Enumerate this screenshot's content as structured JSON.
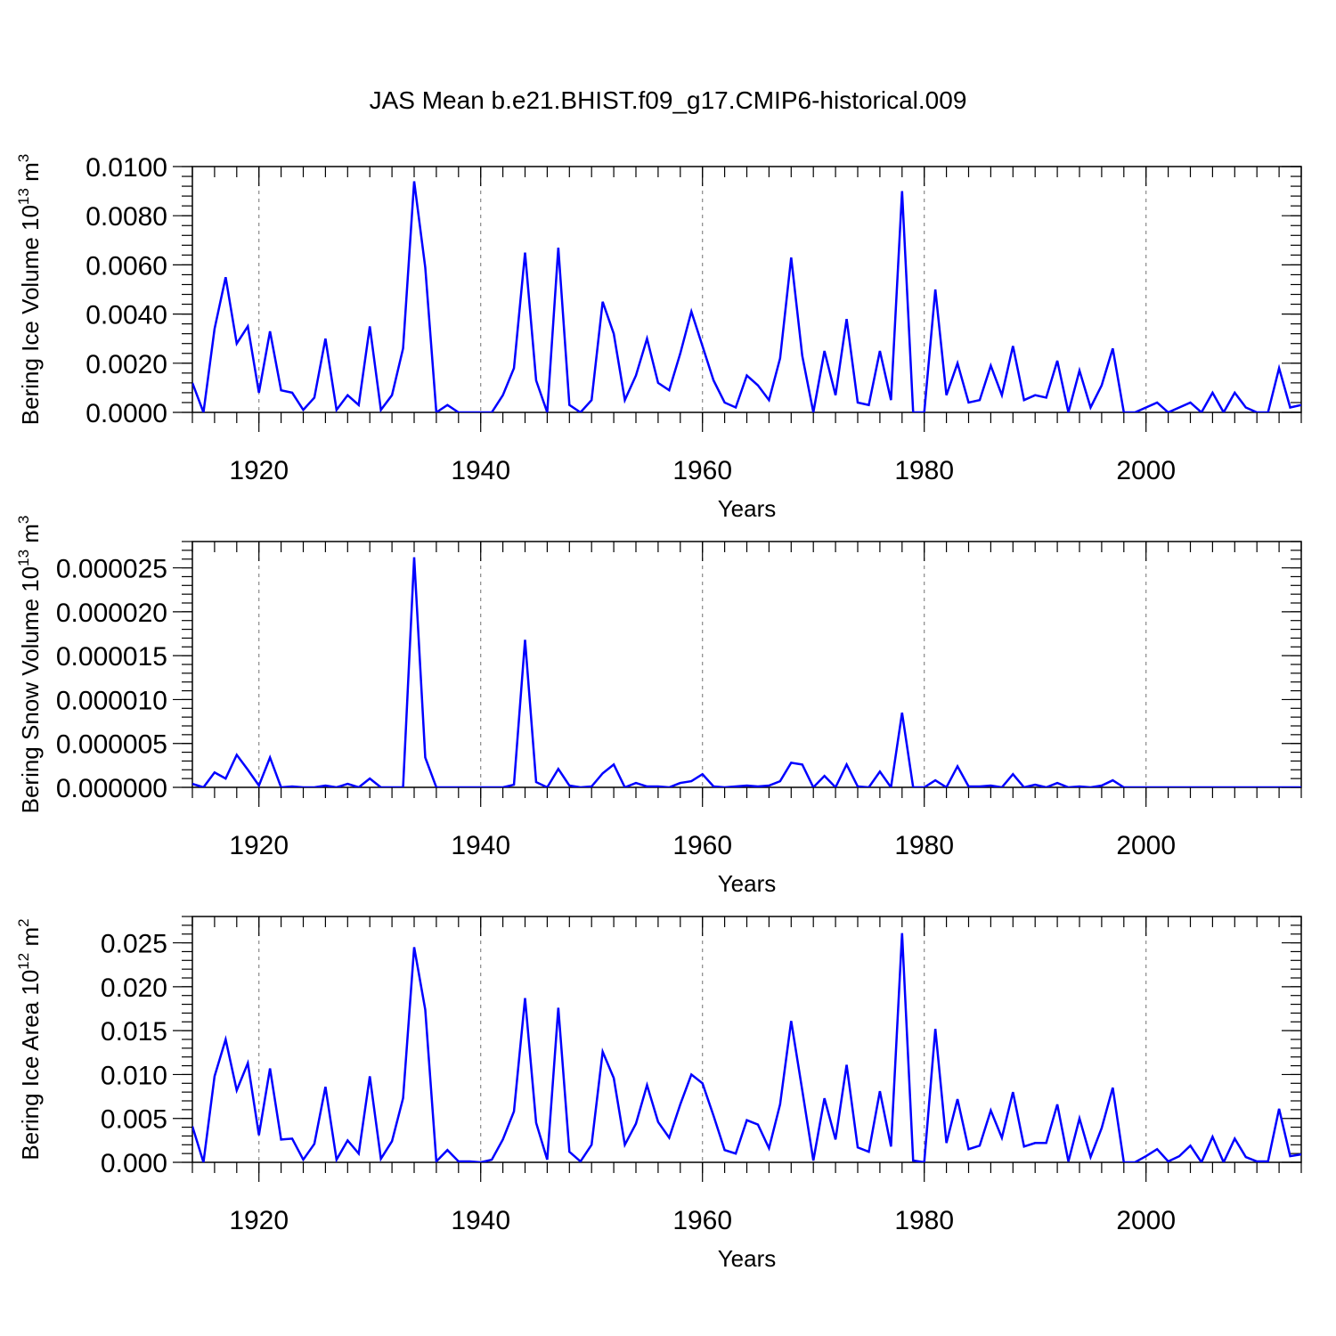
{
  "chart_data": {
    "type": "line",
    "title": "JAS Mean b.e21.BHIST.f09_g17.CMIP6-historical.009",
    "x_start": 1914,
    "x_step": 1,
    "xlim": [
      1914,
      2014
    ],
    "x_ticks": [
      1920,
      1940,
      1960,
      1980,
      2000
    ],
    "x_tick_labels": [
      "1920",
      "1940",
      "1960",
      "1980",
      "2000"
    ],
    "grid": "vertical dashed at major x ticks",
    "panels": [
      {
        "xlabel": "Years",
        "ylabel_main": "Bering Ice Volume 10",
        "ylabel_exp": "13",
        "ylabel_unit": "m",
        "ylabel_unit_exp": "3",
        "ylim": [
          0,
          0.01
        ],
        "y_ticks": [
          0,
          0.002,
          0.004,
          0.006,
          0.008,
          0.01
        ],
        "y_tick_labels": [
          "0.0000",
          "0.0020",
          "0.0040",
          "0.0060",
          "0.0080",
          "0.0100"
        ],
        "series": [
          {
            "name": "Bering Ice Volume",
            "color": "#0000ff",
            "values": [
              0.0012,
              0.0,
              0.0034,
              0.0055,
              0.0028,
              0.0035,
              0.0008,
              0.0033,
              0.0009,
              0.0008,
              0.0001,
              0.0006,
              0.003,
              0.0001,
              0.0007,
              0.0003,
              0.0035,
              0.0001,
              0.0007,
              0.0026,
              0.0094,
              0.0059,
              0.0,
              0.0003,
              0.0,
              0.0,
              0.0,
              0.0,
              0.0007,
              0.0018,
              0.0065,
              0.0013,
              0.0,
              0.0067,
              0.0003,
              0.0,
              0.0005,
              0.0045,
              0.0032,
              0.0005,
              0.0015,
              0.003,
              0.0012,
              0.0009,
              0.0024,
              0.0041,
              0.0027,
              0.0013,
              0.0004,
              0.0002,
              0.0015,
              0.0011,
              0.0005,
              0.0022,
              0.0063,
              0.0023,
              0.0,
              0.0025,
              0.0007,
              0.0038,
              0.0004,
              0.0003,
              0.0025,
              0.0005,
              0.009,
              0.0,
              0.0,
              0.005,
              0.0007,
              0.002,
              0.0004,
              0.0005,
              0.0019,
              0.0007,
              0.0027,
              0.0005,
              0.0007,
              0.0006,
              0.0021,
              0.0,
              0.0017,
              0.0002,
              0.0011,
              0.0026,
              0.0,
              0.0,
              0.0002,
              0.0004,
              0.0,
              0.0002,
              0.0004,
              0.0,
              0.0008,
              0.0,
              0.0008,
              0.0002,
              0.0,
              0.0,
              0.0018,
              0.0002,
              0.0003
            ]
          }
        ]
      },
      {
        "xlabel": "Years",
        "ylabel_main": "Bering Snow Volume 10",
        "ylabel_exp": "13",
        "ylabel_unit": "m",
        "ylabel_unit_exp": "3",
        "ylim": [
          0,
          2.8e-05
        ],
        "y_ticks": [
          0,
          5e-06,
          1e-05,
          1.5e-05,
          2e-05,
          2.5e-05
        ],
        "y_tick_labels": [
          "0.000000",
          "0.000005",
          "0.000010",
          "0.000015",
          "0.000020",
          "0.000025"
        ],
        "series": [
          {
            "name": "Bering Snow Volume",
            "color": "#0000ff",
            "values": [
              4e-07,
              0.0,
              1.7e-06,
              1e-06,
              3.7e-06,
              2e-06,
              2e-07,
              3.4e-06,
              0.0,
              1e-07,
              0.0,
              0.0,
              2e-07,
              0.0,
              4e-07,
              0.0,
              1e-06,
              0.0,
              0.0,
              0.0,
              2.62e-05,
              3.4e-06,
              0.0,
              0.0,
              0.0,
              0.0,
              0.0,
              0.0,
              0.0,
              3e-07,
              1.68e-05,
              6e-07,
              0.0,
              2.1e-06,
              2e-07,
              0.0,
              1e-07,
              1.6e-06,
              2.6e-06,
              0.0,
              5e-07,
              1e-07,
              1e-07,
              0.0,
              5e-07,
              7e-07,
              1.5e-06,
              1e-07,
              0.0,
              1e-07,
              2e-07,
              1e-07,
              2e-07,
              7e-07,
              2.8e-06,
              2.6e-06,
              0.0,
              1.3e-06,
              0.0,
              2.6e-06,
              1e-07,
              0.0,
              1.8e-06,
              0.0,
              8.5e-06,
              0.0,
              0.0,
              8e-07,
              0.0,
              2.4e-06,
              1e-07,
              1e-07,
              2e-07,
              0.0,
              1.5e-06,
              0.0,
              3e-07,
              0.0,
              5e-07,
              0.0,
              1e-07,
              0.0,
              2e-07,
              8e-07,
              0.0,
              0.0,
              0.0,
              0.0,
              0.0,
              0.0,
              0.0,
              0.0,
              0.0,
              0.0,
              0.0,
              0.0,
              0.0,
              0.0,
              0.0,
              0.0,
              0.0
            ]
          }
        ]
      },
      {
        "xlabel": "Years",
        "ylabel_main": "Bering Ice Area 10",
        "ylabel_exp": "12",
        "ylabel_unit": "m",
        "ylabel_unit_exp": "2",
        "ylim": [
          0,
          0.028
        ],
        "y_ticks": [
          0,
          0.005,
          0.01,
          0.015,
          0.02,
          0.025
        ],
        "y_tick_labels": [
          "0.000",
          "0.005",
          "0.010",
          "0.015",
          "0.020",
          "0.025"
        ],
        "series": [
          {
            "name": "Bering Ice Area",
            "color": "#0000ff",
            "values": [
              0.0041,
              0.0,
              0.0098,
              0.014,
              0.0082,
              0.0113,
              0.0031,
              0.0107,
              0.0026,
              0.0027,
              0.0003,
              0.0021,
              0.0086,
              0.0003,
              0.0025,
              0.001,
              0.0098,
              0.0004,
              0.0024,
              0.0073,
              0.0245,
              0.0174,
              0.0001,
              0.0014,
              0.0001,
              0.0001,
              0.0,
              0.0003,
              0.0026,
              0.0058,
              0.0187,
              0.0045,
              0.0003,
              0.0176,
              0.0012,
              0.0001,
              0.002,
              0.0126,
              0.0096,
              0.002,
              0.0044,
              0.0088,
              0.0046,
              0.0028,
              0.0066,
              0.01,
              0.009,
              0.0053,
              0.0014,
              0.001,
              0.0048,
              0.0043,
              0.0016,
              0.0066,
              0.0161,
              0.0082,
              0.0002,
              0.0073,
              0.0026,
              0.0111,
              0.0017,
              0.0012,
              0.0081,
              0.0018,
              0.0261,
              0.0002,
              0.0,
              0.0152,
              0.0022,
              0.0072,
              0.0015,
              0.0019,
              0.0059,
              0.0028,
              0.008,
              0.0018,
              0.0022,
              0.0022,
              0.0066,
              0.0001,
              0.005,
              0.0006,
              0.0039,
              0.0085,
              0.0,
              0.0,
              0.0007,
              0.0015,
              0.0001,
              0.0007,
              0.0019,
              0.0,
              0.0029,
              0.0,
              0.0027,
              0.0006,
              0.0001,
              0.0001,
              0.0061,
              0.0007,
              0.0009
            ]
          }
        ]
      }
    ]
  }
}
